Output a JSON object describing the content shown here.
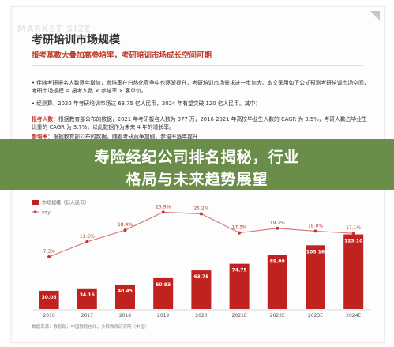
{
  "header": {
    "watermark": "MARKET SIZE",
    "title": "考研培训市场规模",
    "subtitle": "报考基数大叠加高参培率，考研培训市场成长空间可期"
  },
  "body": {
    "para1": "• 伴随考研报名人数逐年增加，参培率在白热化竞争中也逐渐提升，考研培训市场需求进一步加大。本文采用如下公式预测考研培训市场空间，考研市场规模 = 报考人数 × 参培率 × 客单价。",
    "para2": "• 经测算，2020 年考研培训市场达 63.75 亿人民币，2024 年有望突破 120 亿人民币。其中：",
    "para3_label": "报考人数：",
    "para3": "根据教育部公布的数据，2021 年考研报名人数为 377 万，2016-2021 年高校毕业生人数的 CAGR 为 3.5%，考研人数占毕业生比重的 CAGR 为 3.7%，以此数据作为未来 4 年的增长率。",
    "para4_label": "参培率：",
    "para4": "根据教育部公布的数据，随着考研竞争加剧，参培率逐年提升"
  },
  "overlay": {
    "line1": "寿险经纪公司排名揭秘，行业",
    "line2": "格局与未来趋势展望"
  },
  "legend": {
    "bar_label": "市场规模（亿人民币）",
    "line_label": "yoy"
  },
  "chart_data": {
    "type": "bar",
    "categories": [
      "2016",
      "2017",
      "2018",
      "2019",
      "2020",
      "2021E",
      "2022E",
      "2023E",
      "2024E"
    ],
    "series": [
      {
        "name": "市场规模（亿人民币）",
        "values": [
          30.08,
          34.16,
          40.45,
          50.93,
          63.75,
          74.75,
          89.09,
          105.16,
          123.1
        ]
      },
      {
        "name": "yoy",
        "values": [
          null,
          13.6,
          18.4,
          25.9,
          25.2,
          17.3,
          19.2,
          18.0,
          17.1
        ]
      }
    ],
    "value_labels": [
      "30.08",
      "34.16",
      "40.45",
      "50.93",
      "63.75",
      "74.75",
      "89.09",
      "105.16",
      "123.10"
    ],
    "yoy_labels": [
      "7.3%",
      "13.6%",
      "18.4%",
      "25.9%",
      "25.2%",
      "17.3%",
      "19.2%",
      "18.0%",
      "17.1%"
    ],
    "yoy_first": 7.3,
    "colors": {
      "bar": "#c0221f",
      "line": "#d97b7b",
      "dot": "#cc3333"
    }
  },
  "footer": {
    "source": "数据来源：教育部，中国教育在线，多鲸教育研究院（中国）"
  }
}
